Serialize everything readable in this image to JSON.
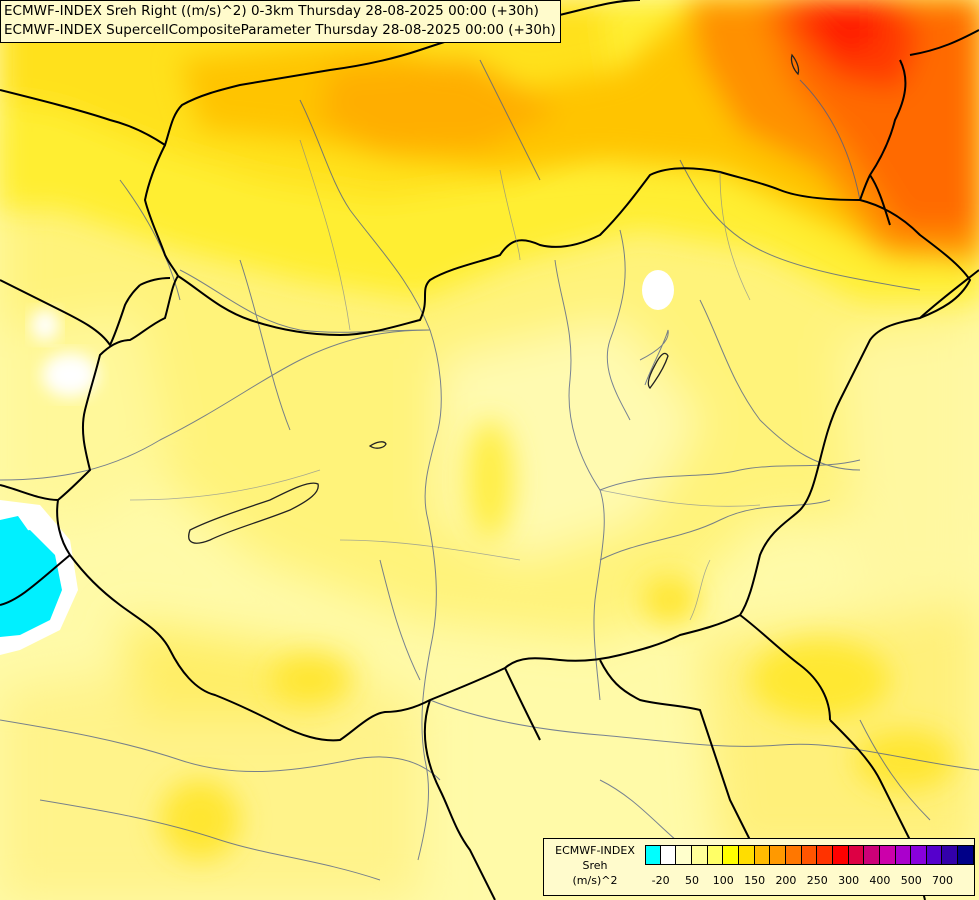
{
  "header": {
    "line1": "ECMWF-INDEX Sreh Right ((m/s)^2) 0-3km Thursday 28-08-2025 00:00 (+30h)",
    "line2": "ECMWF-INDEX SupercellCompositeParameter Thursday 28-08-2025 00:00 (+30h)"
  },
  "legend": {
    "model": "ECMWF-INDEX",
    "parameter": "Sreh",
    "unit": "(m/s)^2",
    "ticks": [
      "-20",
      "50",
      "100",
      "150",
      "200",
      "250",
      "300",
      "400",
      "500",
      "700"
    ],
    "colors": [
      "#00ffff",
      "#ffffff",
      "#ffffcc",
      "#ffff99",
      "#ffff66",
      "#ffff00",
      "#ffdd00",
      "#ffbb00",
      "#ff9900",
      "#ff7700",
      "#ff5500",
      "#ff3300",
      "#ff0000",
      "#dd0044",
      "#cc0077",
      "#cc00aa",
      "#aa00cc",
      "#8800dd",
      "#5500cc",
      "#3300aa",
      "#000088"
    ]
  }
}
